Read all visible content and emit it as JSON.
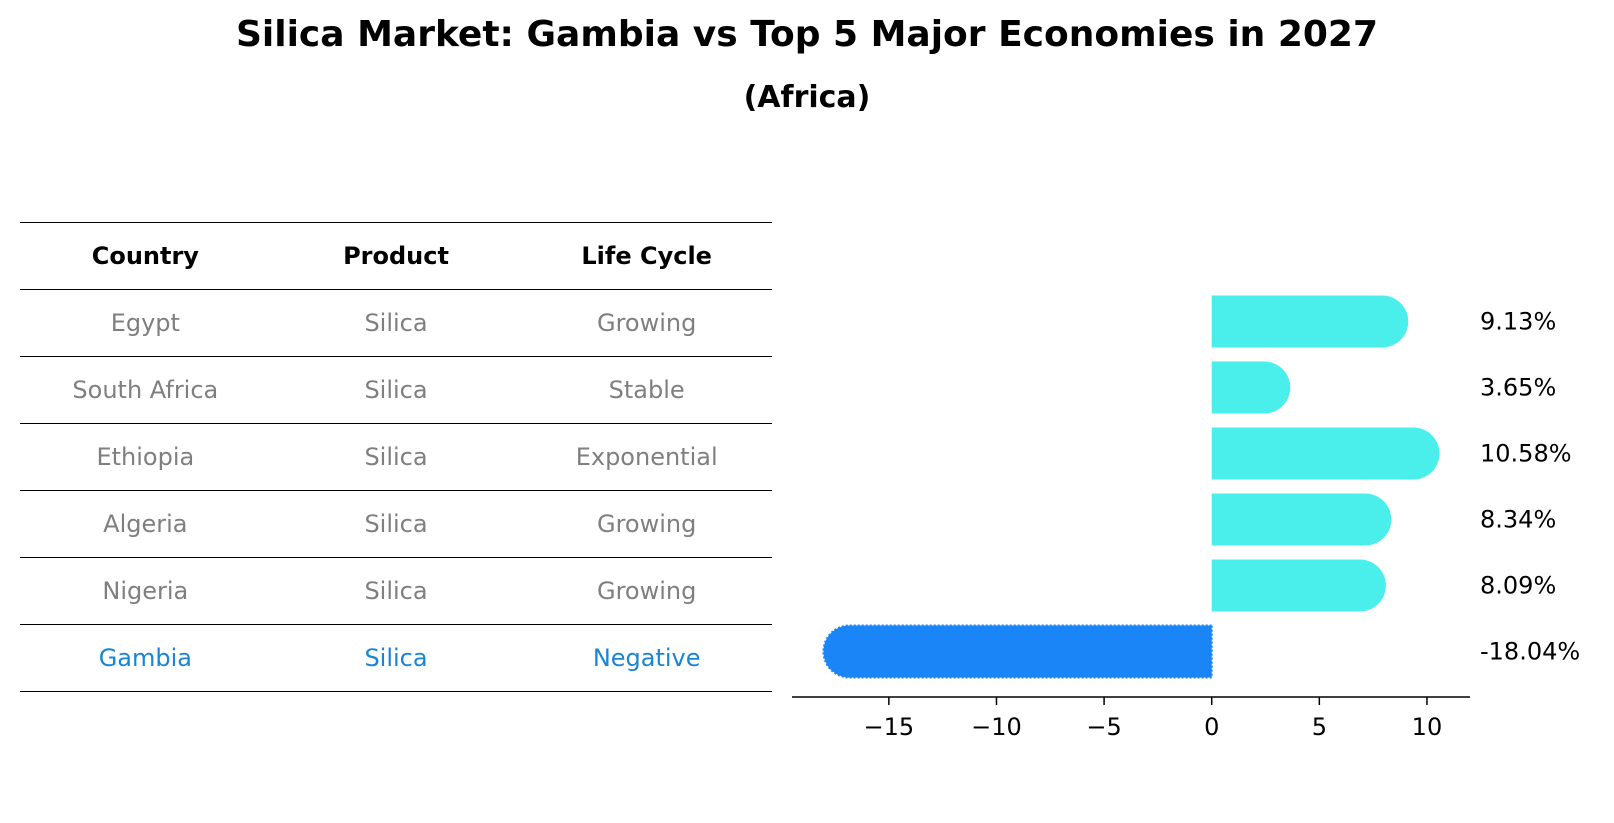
{
  "title": "Silica Market: Gambia vs Top 5 Major Economies in 2027",
  "subtitle": "(Africa)",
  "table": {
    "headers": [
      "Country",
      "Product",
      "Life Cycle"
    ],
    "rows": [
      [
        "Egypt",
        "Silica",
        "Growing"
      ],
      [
        "South Africa",
        "Silica",
        "Stable"
      ],
      [
        "Ethiopia",
        "Silica",
        "Exponential"
      ],
      [
        "Algeria",
        "Silica",
        "Growing"
      ],
      [
        "Nigeria",
        "Silica",
        "Growing"
      ],
      [
        "Gambia",
        "Silica",
        "Negative"
      ]
    ],
    "highlight_color": "#1a85d6",
    "text_color": "#7f7f7f"
  },
  "chart_data": {
    "type": "bar",
    "orientation": "horizontal",
    "title": "Silica Market: Gambia vs Top 5 Major Economies in 2027",
    "subtitle": "(Africa)",
    "categories": [
      "Egypt",
      "South Africa",
      "Ethiopia",
      "Algeria",
      "Nigeria",
      "Gambia"
    ],
    "values": [
      9.13,
      3.65,
      10.58,
      8.34,
      8.09,
      -18.04
    ],
    "labels": [
      "9.13%",
      "3.65%",
      "10.58%",
      "8.34%",
      "8.09%",
      "-18.04%"
    ],
    "xlim": [
      -19.5,
      12
    ],
    "xticks": [
      -15,
      -10,
      -5,
      0,
      5,
      10
    ],
    "xtick_labels": [
      "−15",
      "−10",
      "−5",
      "0",
      "5",
      "10"
    ],
    "xlabel": "",
    "ylabel": "",
    "grid": false,
    "colors": {
      "positive": "#4aeeea",
      "highlight": "#1a85f6"
    }
  }
}
